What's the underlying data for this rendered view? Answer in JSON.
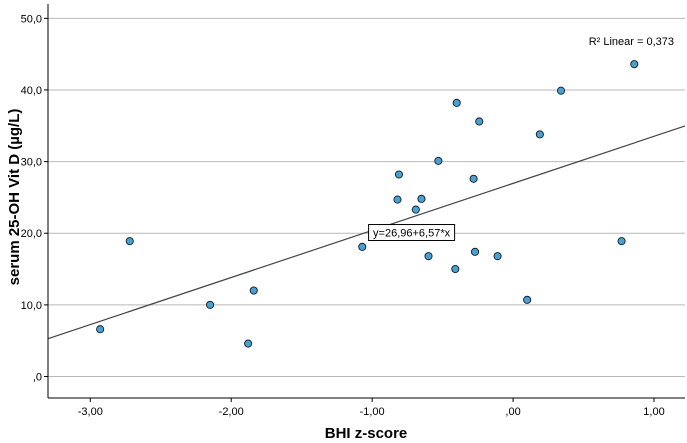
{
  "chart_data": {
    "type": "scatter",
    "title": "",
    "xlabel": "BHI z-score",
    "ylabel": "serum 25-OH Vit D (µg/L)",
    "xlim": [
      -3.3,
      1.22
    ],
    "ylim": [
      -3,
      52
    ],
    "x_ticks": [
      -3,
      -2,
      -1,
      0,
      1
    ],
    "x_tick_labels": [
      "-3,00",
      "-2,00",
      "-1,00",
      ",00",
      "1,00"
    ],
    "y_ticks": [
      0,
      10,
      20,
      30,
      40,
      50
    ],
    "y_tick_labels": [
      ",0",
      "10,0",
      "20,0",
      "30,0",
      "40,0",
      "50,0"
    ],
    "grid": "horizontal",
    "point_color": "#3fa3df",
    "line_color": "#444444",
    "fit": {
      "intercept": 26.96,
      "slope": 6.57,
      "r2_label": "R² Linear = 0,373",
      "equation_label": "y=26,96+6,57*x"
    },
    "points": [
      {
        "x": -2.93,
        "y": 6.6
      },
      {
        "x": -2.72,
        "y": 18.9
      },
      {
        "x": -2.15,
        "y": 10.0
      },
      {
        "x": -1.88,
        "y": 4.6
      },
      {
        "x": -1.84,
        "y": 12.0
      },
      {
        "x": -1.07,
        "y": 18.1
      },
      {
        "x": -0.82,
        "y": 24.7
      },
      {
        "x": -0.81,
        "y": 28.2
      },
      {
        "x": -0.69,
        "y": 23.3
      },
      {
        "x": -0.65,
        "y": 24.8
      },
      {
        "x": -0.6,
        "y": 16.8
      },
      {
        "x": -0.53,
        "y": 30.1
      },
      {
        "x": -0.41,
        "y": 15.0
      },
      {
        "x": -0.4,
        "y": 38.2
      },
      {
        "x": -0.28,
        "y": 27.6
      },
      {
        "x": -0.27,
        "y": 17.4
      },
      {
        "x": -0.24,
        "y": 35.6
      },
      {
        "x": -0.11,
        "y": 16.8
      },
      {
        "x": 0.1,
        "y": 10.7
      },
      {
        "x": 0.19,
        "y": 33.8
      },
      {
        "x": 0.34,
        "y": 39.9
      },
      {
        "x": 0.77,
        "y": 18.9
      },
      {
        "x": 0.86,
        "y": 43.6
      }
    ]
  }
}
